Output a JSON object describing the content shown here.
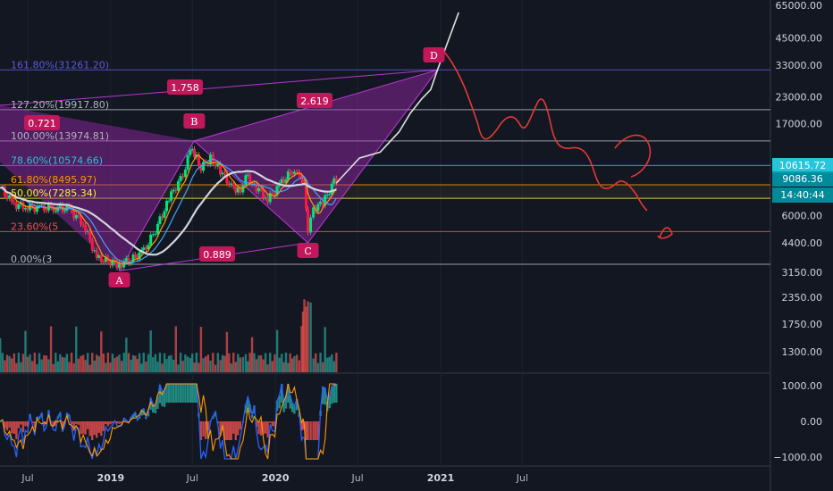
{
  "chart_data": {
    "type": "candlestick",
    "price_axis": {
      "scale": "log",
      "ticks": [
        "65000.00",
        "45000.00",
        "33000.00",
        "23000.00",
        "17000.00",
        "10615.72",
        "9086.36",
        "6000.00",
        "4400.00",
        "3150.00",
        "2350.00",
        "1750.00",
        "1300.00"
      ],
      "tick_values": [
        65000,
        45000,
        33000,
        23000,
        17000,
        6000,
        4400,
        3150,
        2350,
        1750,
        1300
      ]
    },
    "oscillator_axis": {
      "ticks": [
        "1000.00",
        "0.00",
        "−1000.00"
      ],
      "tick_values": [
        1000,
        0,
        -1000
      ],
      "ylim": [
        -1100,
        1100
      ]
    },
    "time_axis": {
      "labels": [
        {
          "text": "Jul",
          "date": "2018-07-01",
          "bold": false
        },
        {
          "text": "2019",
          "date": "2019-01-01",
          "bold": true
        },
        {
          "text": "Jul",
          "date": "2019-07-01",
          "bold": false
        },
        {
          "text": "2020",
          "date": "2020-01-01",
          "bold": true
        },
        {
          "text": "Jul",
          "date": "2020-07-01",
          "bold": false
        },
        {
          "text": "2021",
          "date": "2021-01-01",
          "bold": true
        },
        {
          "text": "Jul",
          "date": "2021-07-01",
          "bold": false
        }
      ]
    },
    "last_price_badges": [
      {
        "text": "10615.72",
        "price": 10615.72,
        "color": "#26c6da"
      },
      {
        "text": "9086.36",
        "price": 9086.36,
        "color": "#26c6da"
      },
      {
        "text": "14:40:44",
        "price": 7285,
        "color": "#26c6da"
      }
    ],
    "fib_levels": [
      {
        "label": "161.80%(31261.20)",
        "price": 31261.2,
        "color": "#5b5bd6"
      },
      {
        "label": "127.20%(19917.80)",
        "price": 19917.8,
        "color": "#b2b5be"
      },
      {
        "label": "100.00%(13974.81)",
        "price": 13974.81,
        "color": "#b2b5be"
      },
      {
        "label": "78.60%(10574.66)",
        "price": 10574.66,
        "color": "#26c6da"
      },
      {
        "label": "61.80%(8495.97)",
        "price": 8495.97,
        "color": "#ff9800"
      },
      {
        "label": "50.00%(7285.34)",
        "price": 7285.34,
        "color": "#ffeb3b"
      },
      {
        "label": "23.60%(5",
        "price": 5000,
        "color": "#ef5350"
      },
      {
        "label": "0.00%(3",
        "price": 3450,
        "color": "#b2b5be"
      }
    ],
    "harmonic_points": [
      {
        "label": "A",
        "date": "2019-01-20",
        "price": 3200
      },
      {
        "label": "B",
        "date": "2019-07-05",
        "price": 13974.81
      },
      {
        "label": "C",
        "date": "2020-03-13",
        "price": 4400
      },
      {
        "label": "D",
        "date": "2020-12-25",
        "price": 31261.2
      }
    ],
    "ratios": [
      {
        "label": "0.721"
      },
      {
        "label": "1.758"
      },
      {
        "label": "2.619"
      },
      {
        "label": "0.889"
      }
    ]
  }
}
